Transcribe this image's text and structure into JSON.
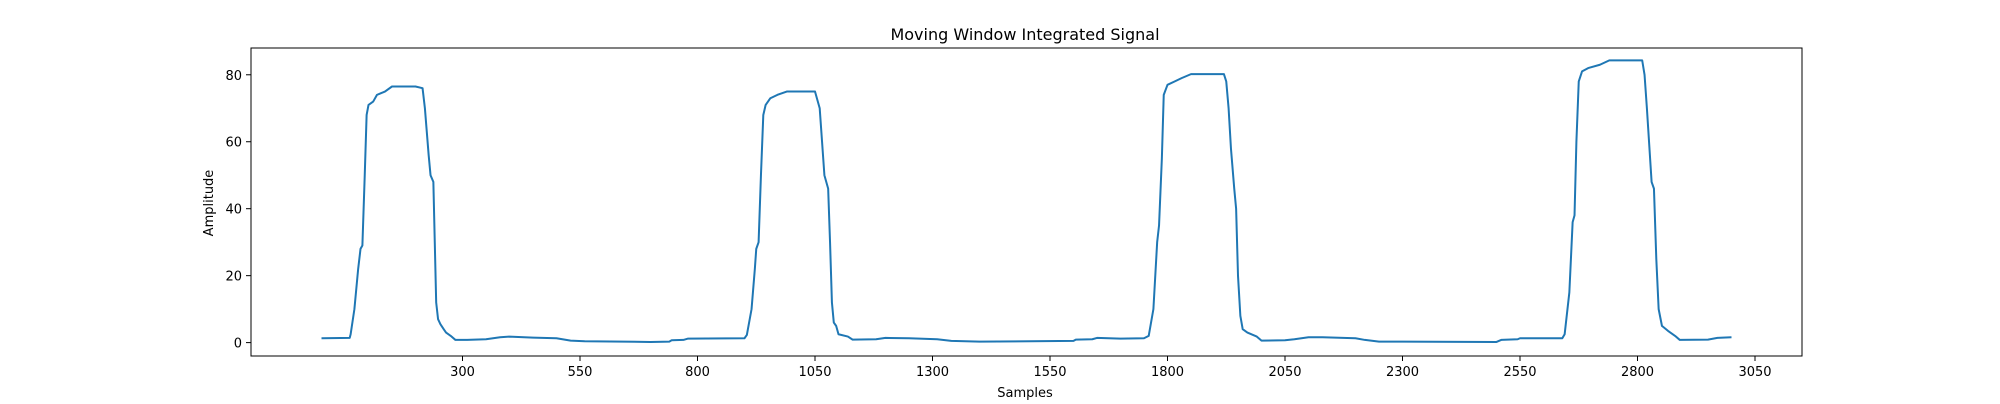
{
  "chart_data": {
    "type": "line",
    "title": "Moving Window Integrated Signal",
    "xlabel": "Samples",
    "ylabel": "Amplitude",
    "xlim": [
      -150,
      3150
    ],
    "ylim": [
      -4,
      88
    ],
    "xticks": [
      300,
      550,
      800,
      1050,
      1300,
      1550,
      1800,
      2050,
      2300,
      2550,
      2800,
      3050
    ],
    "yticks": [
      0,
      20,
      40,
      60,
      80
    ],
    "grid": false,
    "legend": "none",
    "series": [
      {
        "color": "#1f77b4",
        "points": [
          [
            0,
            1.3
          ],
          [
            60,
            1.4
          ],
          [
            62,
            2.5
          ],
          [
            70,
            10
          ],
          [
            78,
            22
          ],
          [
            83,
            28
          ],
          [
            87,
            29
          ],
          [
            92,
            50
          ],
          [
            96,
            68
          ],
          [
            100,
            71
          ],
          [
            110,
            72
          ],
          [
            118,
            74
          ],
          [
            135,
            75
          ],
          [
            150,
            76.5
          ],
          [
            200,
            76.5
          ],
          [
            215,
            76
          ],
          [
            220,
            70
          ],
          [
            228,
            56
          ],
          [
            232,
            50
          ],
          [
            238,
            48
          ],
          [
            241,
            30
          ],
          [
            244,
            12
          ],
          [
            248,
            7
          ],
          [
            253,
            5.5
          ],
          [
            260,
            4
          ],
          [
            265,
            3
          ],
          [
            275,
            2
          ],
          [
            285,
            0.8
          ],
          [
            310,
            0.8
          ],
          [
            350,
            1
          ],
          [
            380,
            1.6
          ],
          [
            400,
            1.8
          ],
          [
            450,
            1.5
          ],
          [
            500,
            1.3
          ],
          [
            530,
            0.6
          ],
          [
            560,
            0.4
          ],
          [
            700,
            0.2
          ],
          [
            740,
            0.3
          ],
          [
            745,
            0.7
          ],
          [
            770,
            0.8
          ],
          [
            780,
            1.2
          ],
          [
            900,
            1.3
          ],
          [
            905,
            2.3
          ],
          [
            915,
            10
          ],
          [
            922,
            22
          ],
          [
            925,
            28
          ],
          [
            930,
            30
          ],
          [
            935,
            50
          ],
          [
            940,
            68
          ],
          [
            945,
            71
          ],
          [
            955,
            73
          ],
          [
            970,
            74
          ],
          [
            990,
            75
          ],
          [
            1050,
            75
          ],
          [
            1060,
            70
          ],
          [
            1065,
            60
          ],
          [
            1070,
            50
          ],
          [
            1078,
            46
          ],
          [
            1082,
            30
          ],
          [
            1086,
            12
          ],
          [
            1090,
            6
          ],
          [
            1095,
            5
          ],
          [
            1100,
            2.5
          ],
          [
            1120,
            1.8
          ],
          [
            1130,
            0.9
          ],
          [
            1180,
            1
          ],
          [
            1200,
            1.4
          ],
          [
            1250,
            1.3
          ],
          [
            1310,
            1
          ],
          [
            1340,
            0.5
          ],
          [
            1400,
            0.3
          ],
          [
            1600,
            0.5
          ],
          [
            1605,
            0.9
          ],
          [
            1640,
            1
          ],
          [
            1650,
            1.4
          ],
          [
            1700,
            1.2
          ],
          [
            1750,
            1.3
          ],
          [
            1760,
            2
          ],
          [
            1770,
            10
          ],
          [
            1778,
            30
          ],
          [
            1782,
            35
          ],
          [
            1788,
            55
          ],
          [
            1792,
            74
          ],
          [
            1800,
            77
          ],
          [
            1815,
            78
          ],
          [
            1830,
            79
          ],
          [
            1850,
            80.2
          ],
          [
            1920,
            80.2
          ],
          [
            1925,
            78
          ],
          [
            1930,
            70
          ],
          [
            1935,
            58
          ],
          [
            1942,
            46
          ],
          [
            1946,
            40
          ],
          [
            1950,
            20
          ],
          [
            1955,
            8
          ],
          [
            1960,
            4
          ],
          [
            1970,
            3
          ],
          [
            1990,
            1.8
          ],
          [
            2000,
            0.6
          ],
          [
            2050,
            0.7
          ],
          [
            2070,
            1
          ],
          [
            2100,
            1.6
          ],
          [
            2130,
            1.6
          ],
          [
            2200,
            1.3
          ],
          [
            2220,
            0.8
          ],
          [
            2250,
            0.3
          ],
          [
            2300,
            0.3
          ],
          [
            2500,
            0.2
          ],
          [
            2510,
            0.8
          ],
          [
            2545,
            1
          ],
          [
            2550,
            1.3
          ],
          [
            2640,
            1.3
          ],
          [
            2645,
            2.5
          ],
          [
            2655,
            15
          ],
          [
            2662,
            36
          ],
          [
            2666,
            38
          ],
          [
            2670,
            60
          ],
          [
            2675,
            78
          ],
          [
            2682,
            81
          ],
          [
            2695,
            82
          ],
          [
            2720,
            83
          ],
          [
            2740,
            84.3
          ],
          [
            2810,
            84.3
          ],
          [
            2815,
            80
          ],
          [
            2820,
            70
          ],
          [
            2830,
            48
          ],
          [
            2835,
            46
          ],
          [
            2840,
            25
          ],
          [
            2845,
            10
          ],
          [
            2852,
            5
          ],
          [
            2865,
            3.5
          ],
          [
            2880,
            2
          ],
          [
            2890,
            0.8
          ],
          [
            2950,
            0.9
          ],
          [
            2970,
            1.4
          ],
          [
            3000,
            1.6
          ]
        ]
      }
    ]
  }
}
